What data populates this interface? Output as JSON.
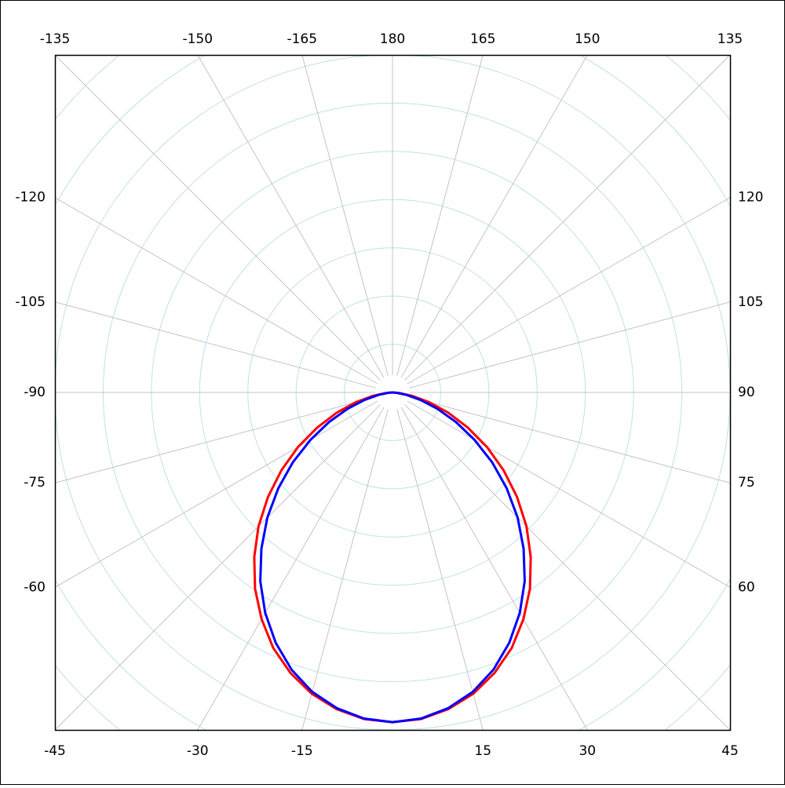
{
  "chart_data": {
    "type": "polar",
    "x": [
      -90,
      -85,
      -80,
      -75,
      -70,
      -65,
      -60,
      -55,
      -50,
      -45,
      -40,
      -35,
      -30,
      -25,
      -20,
      -15,
      -10,
      -5,
      0,
      5,
      10,
      15,
      20,
      25,
      30,
      35,
      40,
      45,
      50,
      55,
      60,
      65,
      70,
      75,
      80,
      85,
      90
    ],
    "series": [
      {
        "color": "#ff0000",
        "values": [
          0,
          0.14,
          0.42,
          0.79,
          1.23,
          1.72,
          2.26,
          2.81,
          3.37,
          3.93,
          4.46,
          4.97,
          5.43,
          5.85,
          6.19,
          6.47,
          6.67,
          6.8,
          6.84,
          6.8,
          6.67,
          6.47,
          6.19,
          5.85,
          5.43,
          4.97,
          4.46,
          3.93,
          3.37,
          2.81,
          2.26,
          1.72,
          1.23,
          0.79,
          0.42,
          0.14,
          0
        ]
      },
      {
        "color": "#0000ff",
        "values": [
          0,
          0.08,
          0.29,
          0.6,
          0.99,
          1.45,
          1.96,
          2.52,
          3.09,
          3.67,
          4.23,
          4.78,
          5.28,
          5.73,
          6.12,
          6.43,
          6.65,
          6.79,
          6.84,
          6.79,
          6.65,
          6.43,
          6.12,
          5.73,
          5.28,
          4.78,
          4.23,
          3.67,
          3.09,
          2.52,
          1.96,
          1.45,
          0.99,
          0.6,
          0.29,
          0.08,
          0
        ]
      }
    ],
    "xticks": [
      -45,
      -30,
      -15,
      15,
      30,
      45,
      60,
      75,
      90,
      105,
      120,
      135,
      150,
      165,
      180,
      -165,
      -150,
      -135,
      -120,
      -105,
      -90,
      -75,
      -60
    ],
    "rlim": [
      0,
      7
    ],
    "rticks": [
      1,
      2,
      3,
      4,
      5,
      6,
      7,
      8,
      9
    ],
    "grid": true
  }
}
